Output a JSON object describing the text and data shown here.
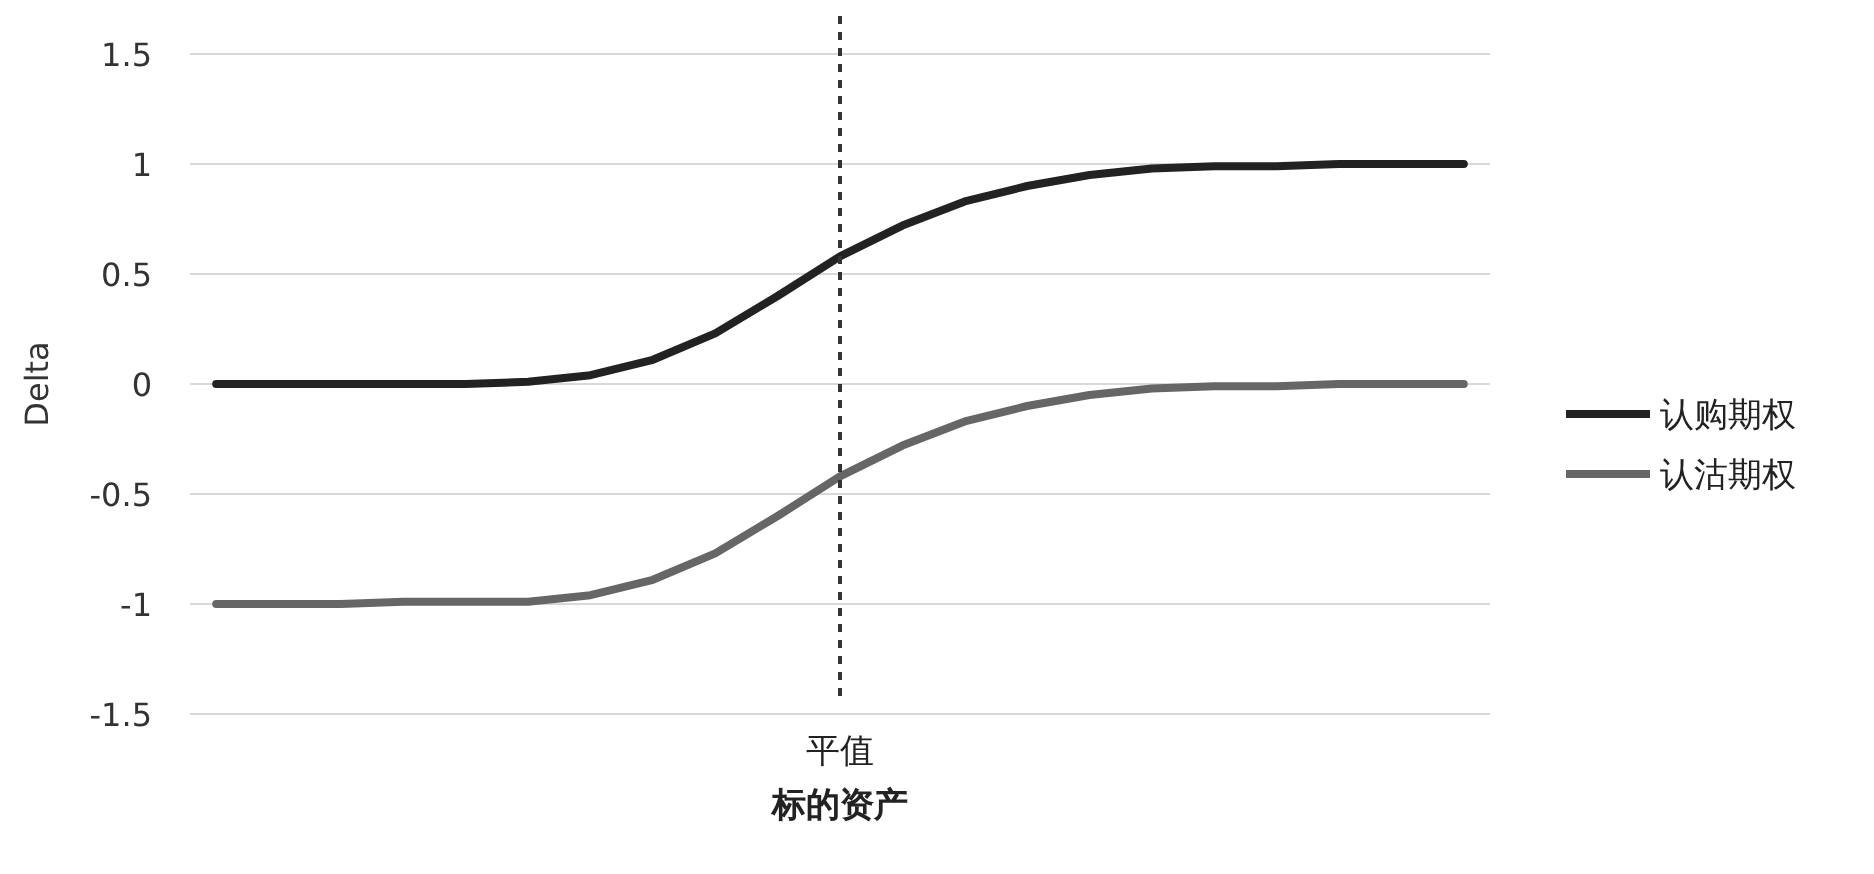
{
  "chart_data": {
    "type": "line",
    "xlabel": "**标的资产**",
    "ylabel": "Delta",
    "categories": [
      null,
      null,
      null,
      null,
      null,
      null,
      null,
      null,
      null,
      null,
      "平值",
      null,
      null,
      null,
      null,
      null,
      null,
      null,
      null,
      null,
      null
    ],
    "ylim": [
      -1.5,
      1.5
    ],
    "yticks": [
      -1.5,
      -1,
      -0.5,
      0,
      0.5,
      1,
      1.5
    ],
    "grid": "y",
    "legend": "right",
    "marker": "none",
    "line_style": "solid",
    "ref_lines": [
      {
        "axis": "x",
        "value": "平值",
        "line_style": "dashed",
        "color": "#333333"
      }
    ],
    "series": [
      {
        "name": "认购期权",
        "color": "#222222",
        "values": [
          0,
          0,
          0,
          0,
          0,
          0.01,
          0.04,
          0.11,
          0.23,
          0.4,
          0.58,
          0.72,
          0.83,
          0.9,
          0.95,
          0.98,
          0.99,
          0.99,
          1,
          1,
          1
        ]
      },
      {
        "name": "认沽期权",
        "color": "#666666",
        "values": [
          -1,
          -1,
          -1,
          -0.99,
          -0.99,
          -0.99,
          -0.96,
          -0.89,
          -0.77,
          -0.6,
          -0.42,
          -0.28,
          -0.17,
          -0.1,
          -0.05,
          -0.02,
          -0.01,
          -0.01,
          0,
          0,
          0
        ]
      }
    ]
  }
}
